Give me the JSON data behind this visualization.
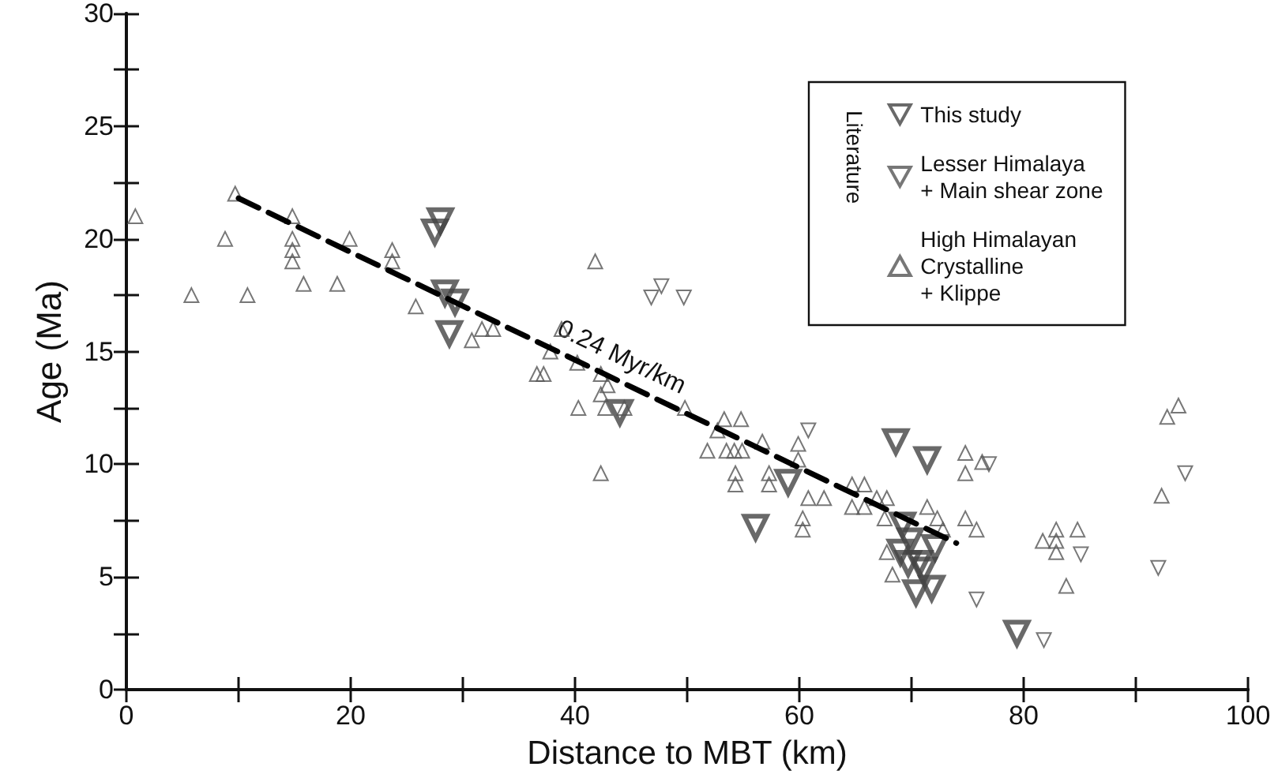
{
  "chart_data": {
    "type": "scatter",
    "xlabel": "Distance to MBT (km)",
    "ylabel": "Age (Ma)",
    "xlim": [
      0,
      100
    ],
    "xticks": [
      0,
      {
        "value": 10,
        "label": null
      },
      20,
      {
        "value": 30,
        "label": null
      },
      40,
      {
        "value": 50,
        "label": null
      },
      60,
      {
        "value": 70,
        "label": null
      },
      80,
      {
        "value": 90,
        "label": null
      },
      100
    ],
    "ylim": [
      0,
      30
    ],
    "yticks": [
      0,
      {
        "value": 2.5,
        "label": null
      },
      5,
      {
        "value": 7.5,
        "label": null
      },
      10,
      {
        "value": 12.5,
        "label": null
      },
      15,
      {
        "value": 17.5,
        "label": null
      },
      20,
      {
        "value": 22.5,
        "label": null
      },
      25,
      {
        "value": 27.5,
        "label": null
      },
      30
    ],
    "grid": false,
    "legend": "top right",
    "legend_title": "Literature",
    "annotations": [
      "0.24 Myr/km"
    ],
    "series": [
      {
        "name": "This study",
        "color": "#444444",
        "marker": "triangle-down",
        "x": [
          28,
          27.5,
          28.4,
          29.3,
          28.8,
          44,
          59,
          56.1,
          68.6,
          71.4,
          69.2,
          69.9,
          69,
          69.7,
          70.7,
          71.1,
          72.1,
          70.4,
          71.8,
          79.4
        ],
        "values": [
          20.8,
          20.3,
          17.6,
          17.2,
          15.8,
          12.3,
          9.2,
          7.2,
          11,
          10.2,
          7.3,
          6.6,
          6.1,
          5.6,
          5.6,
          5.3,
          6.3,
          4.3,
          4.5,
          2.5
        ]
      },
      {
        "name": "Lesser Himalaya\n+ Main shear zone",
        "color": "#555555",
        "marker": "triangle-down",
        "x": [
          47.7,
          46.8,
          49.7,
          60.8,
          76.9,
          75.8,
          81.8,
          85.1,
          94.4,
          92
        ],
        "values": [
          17.9,
          17.4,
          17.4,
          11.5,
          10,
          4,
          2.2,
          6,
          9.6,
          5.4
        ]
      },
      {
        "name": "High Himalayan\nCrystalline\n+ Klippe",
        "color": "#555555",
        "marker": "triangle",
        "x": [
          0.8,
          9.7,
          8.8,
          14.8,
          14.8,
          14.8,
          14.8,
          19.9,
          23.7,
          23.7,
          15.8,
          18.8,
          5.8,
          10.8,
          25.8,
          30.8,
          31.7,
          32.7,
          41.8,
          38.8,
          37.8,
          36.6,
          37.2,
          40.2,
          42.3,
          42.9,
          42.3,
          40.3,
          42.7,
          44.4,
          42.3,
          49.8,
          53.3,
          54.8,
          52.7,
          56.7,
          51.8,
          53.5,
          54.2,
          54.9,
          59.9,
          59.9,
          54.3,
          54.3,
          57.3,
          57.3,
          60.8,
          62.2,
          60.3,
          60.3,
          64.7,
          64.7,
          65.8,
          65.8,
          66.9,
          67.8,
          67.6,
          71.4,
          72.3,
          72.8,
          74.8,
          75.8,
          67.8,
          68.3,
          74.8,
          76.3,
          74.8,
          82.9,
          84.8,
          81.7,
          82.9,
          82.9,
          83.8,
          93.8,
          92.8,
          92.3
        ],
        "values": [
          21,
          22,
          20,
          21,
          20,
          19.5,
          19,
          20,
          19.5,
          19,
          18,
          18,
          17.5,
          17.5,
          17,
          15.5,
          16,
          16,
          19,
          16,
          15,
          14,
          14,
          14.5,
          14,
          13.5,
          13.1,
          12.5,
          12.5,
          12.5,
          9.6,
          12.5,
          12,
          12,
          11.5,
          11,
          10.6,
          10.6,
          10.6,
          10.6,
          10.9,
          10.2,
          9.6,
          9.1,
          9.6,
          9.1,
          8.5,
          8.5,
          7.6,
          7.1,
          9.1,
          8.1,
          9.1,
          8.1,
          8.5,
          8.5,
          7.6,
          8.1,
          7.6,
          7.1,
          7.6,
          7.1,
          6.1,
          5.1,
          10.5,
          10.1,
          9.6,
          7.1,
          7.1,
          6.6,
          6.6,
          6.1,
          4.6,
          12.6,
          12.1,
          8.6
        ]
      },
      {
        "type": "line",
        "color": "#000000",
        "line_style": "dashed",
        "marker": "none",
        "x": [
          10,
          74
        ],
        "values": [
          21.8,
          6.5
        ]
      }
    ]
  }
}
